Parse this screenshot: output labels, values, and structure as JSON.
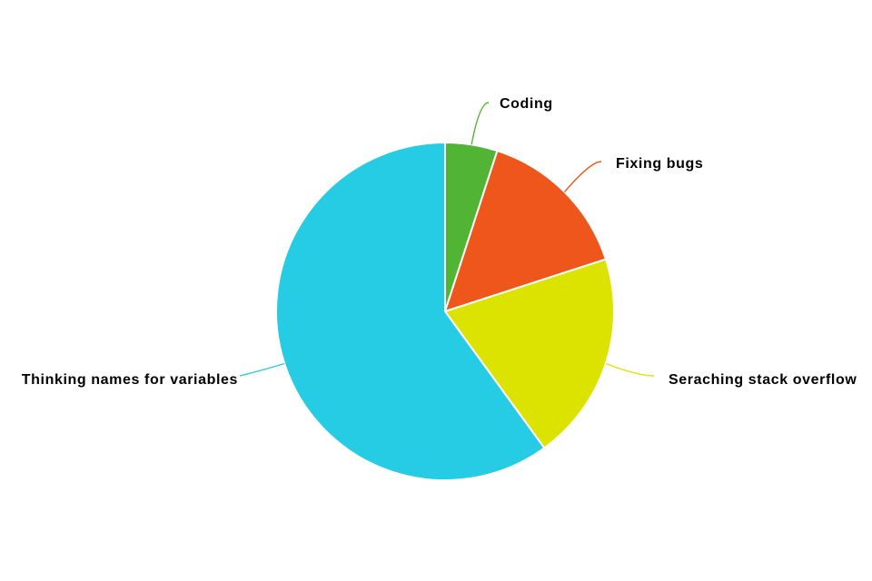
{
  "chart_data": {
    "type": "pie",
    "start": "top",
    "direction": "clockwise",
    "slices": [
      {
        "label": "Coding",
        "value": 5,
        "color": "#52b435"
      },
      {
        "label": "Fixing bugs",
        "value": 15,
        "color": "#ee561c"
      },
      {
        "label": "Seraching stack overflow",
        "value": 20,
        "color": "#dde300"
      },
      {
        "label": "Thinking names for variables",
        "value": 60,
        "color": "#26cbe4"
      }
    ]
  }
}
